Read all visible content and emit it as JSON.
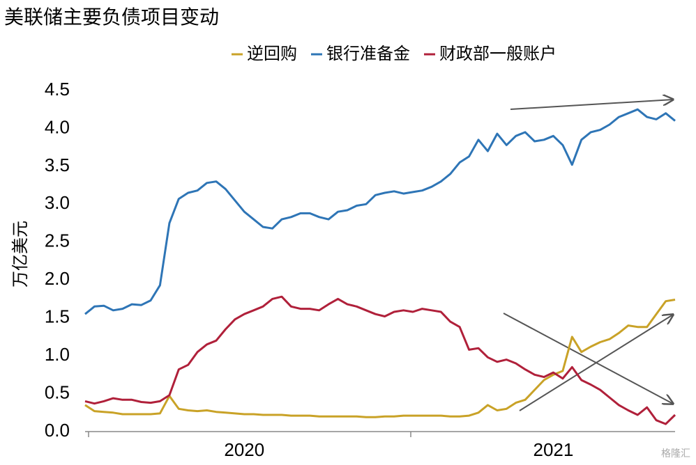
{
  "chart_data": {
    "type": "line",
    "title": "美联储主要负债项目变动",
    "y_label": "万亿美元",
    "watermark": "格隆汇",
    "categories": [
      null,
      null,
      null,
      null,
      null,
      null,
      null,
      null,
      null,
      null,
      null,
      null,
      null,
      null,
      null,
      null,
      null,
      "2020",
      null,
      null,
      null,
      null,
      null,
      null,
      null,
      null,
      null,
      null,
      null,
      null,
      null,
      null,
      null,
      null,
      null,
      null,
      null,
      null,
      null,
      null,
      null,
      null,
      null,
      null,
      null,
      null,
      null,
      null,
      null,
      null,
      "2021",
      null,
      null,
      null,
      null,
      null,
      null,
      null,
      null,
      null,
      null,
      null,
      null,
      null
    ],
    "series": [
      {
        "name": "逆回购",
        "color": "#c9a227",
        "values": [
          0.35,
          0.27,
          0.26,
          0.25,
          0.23,
          0.23,
          0.23,
          0.23,
          0.24,
          0.47,
          0.3,
          0.28,
          0.27,
          0.28,
          0.26,
          0.25,
          0.24,
          0.23,
          0.23,
          0.22,
          0.22,
          0.22,
          0.21,
          0.21,
          0.21,
          0.2,
          0.2,
          0.2,
          0.2,
          0.2,
          0.19,
          0.19,
          0.2,
          0.2,
          0.21,
          0.21,
          0.21,
          0.21,
          0.21,
          0.2,
          0.2,
          0.21,
          0.25,
          0.35,
          0.28,
          0.3,
          0.38,
          0.42,
          0.55,
          0.68,
          0.75,
          0.8,
          1.25,
          1.05,
          1.12,
          1.18,
          1.22,
          1.3,
          1.4,
          1.38,
          1.38,
          1.55,
          1.72,
          1.74
        ]
      },
      {
        "name": "银行准备金",
        "color": "#2e75b6",
        "values": [
          1.55,
          1.65,
          1.66,
          1.6,
          1.62,
          1.68,
          1.67,
          1.73,
          1.93,
          2.75,
          3.07,
          3.15,
          3.18,
          3.28,
          3.3,
          3.2,
          3.05,
          2.9,
          2.8,
          2.7,
          2.68,
          2.8,
          2.83,
          2.88,
          2.88,
          2.83,
          2.8,
          2.9,
          2.92,
          2.98,
          3.0,
          3.12,
          3.15,
          3.17,
          3.14,
          3.16,
          3.18,
          3.23,
          3.3,
          3.4,
          3.55,
          3.63,
          3.85,
          3.7,
          3.93,
          3.78,
          3.9,
          3.95,
          3.83,
          3.85,
          3.9,
          3.78,
          3.52,
          3.85,
          3.95,
          3.98,
          4.05,
          4.15,
          4.2,
          4.25,
          4.15,
          4.12,
          4.2,
          4.1
        ]
      },
      {
        "name": "财政部一般账户",
        "color": "#b0203a",
        "values": [
          0.4,
          0.37,
          0.4,
          0.44,
          0.42,
          0.42,
          0.39,
          0.38,
          0.4,
          0.48,
          0.82,
          0.88,
          1.05,
          1.15,
          1.2,
          1.35,
          1.48,
          1.55,
          1.6,
          1.65,
          1.75,
          1.78,
          1.65,
          1.62,
          1.62,
          1.6,
          1.68,
          1.75,
          1.68,
          1.65,
          1.6,
          1.55,
          1.52,
          1.58,
          1.6,
          1.58,
          1.62,
          1.6,
          1.58,
          1.45,
          1.38,
          1.08,
          1.1,
          0.98,
          0.92,
          0.95,
          0.9,
          0.82,
          0.75,
          0.72,
          0.78,
          0.7,
          0.85,
          0.68,
          0.62,
          0.55,
          0.45,
          0.35,
          0.28,
          0.22,
          0.32,
          0.15,
          0.1,
          0.22
        ]
      }
    ],
    "ylim": [
      0,
      4.5
    ],
    "yticks": [
      {
        "value": 0,
        "label": "0.0"
      },
      0.5,
      {
        "value": 1,
        "label": "1.0"
      },
      1.5,
      {
        "value": 2,
        "label": "2.0"
      },
      2.5,
      {
        "value": 3,
        "label": "3.0"
      },
      3.5,
      {
        "value": 4,
        "label": "4.0"
      },
      4.5
    ],
    "grid": false
  }
}
